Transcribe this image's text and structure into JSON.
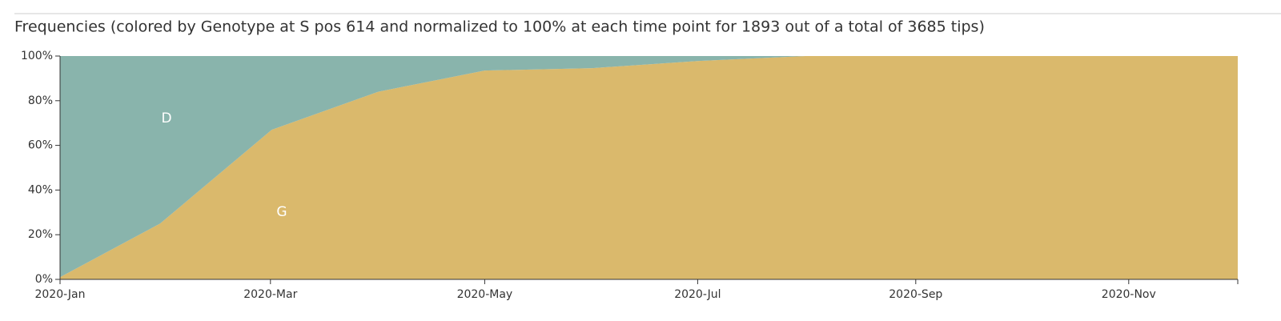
{
  "chart_data": {
    "type": "area",
    "stacked": true,
    "title": "Frequencies (colored by Genotype at S pos 614 and normalized to 100% at each time point for 1893 out of a total of 3685 tips)",
    "x": [
      2020.0,
      2020.078,
      2020.165,
      2020.248,
      2020.331,
      2020.415,
      2020.498,
      2020.581,
      2020.665,
      2020.749,
      2020.833,
      2020.918
    ],
    "series": [
      {
        "name": "G",
        "color": "#dab96c",
        "values": [
          1,
          25,
          67,
          84,
          93.5,
          94.6,
          97.8,
          100,
          100,
          100,
          100,
          100
        ]
      },
      {
        "name": "D",
        "color": "#89b4ac",
        "values": [
          99,
          75,
          33,
          16,
          6.5,
          5.4,
          2.2,
          0,
          0,
          0,
          0,
          0
        ]
      }
    ],
    "xlim": [
      2020.0,
      2020.918
    ],
    "xticks": [
      {
        "value": 2020.0,
        "label": "2020-Jan"
      },
      {
        "value": 2020.164,
        "label": "2020-Mar"
      },
      {
        "value": 2020.331,
        "label": "2020-May"
      },
      {
        "value": 2020.497,
        "label": "2020-Jul"
      },
      {
        "value": 2020.667,
        "label": "2020-Sep"
      },
      {
        "value": 2020.833,
        "label": "2020-Nov"
      }
    ],
    "ylim": [
      0,
      100
    ],
    "yticks": [
      {
        "value": 0,
        "label": "0%"
      },
      {
        "value": 20,
        "label": "20%"
      },
      {
        "value": 40,
        "label": "40%"
      },
      {
        "value": 60,
        "label": "60%"
      },
      {
        "value": 80,
        "label": "80%"
      },
      {
        "value": 100,
        "label": "100%"
      }
    ],
    "grid": false
  }
}
